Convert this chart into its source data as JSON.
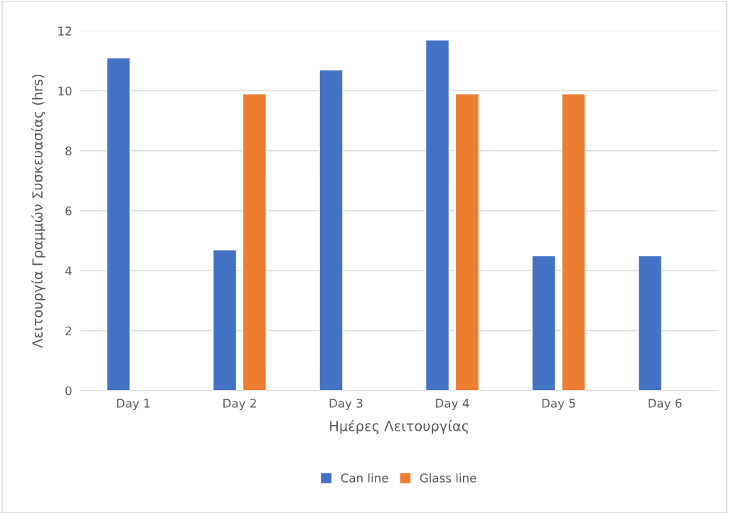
{
  "chart_data": {
    "type": "bar",
    "categories": [
      "Day 1",
      "Day 2",
      "Day 3",
      "Day 4",
      "Day 5",
      "Day 6"
    ],
    "series": [
      {
        "name": "Can line",
        "color": "#4472c4",
        "values": [
          11.1,
          4.7,
          10.7,
          11.7,
          4.5,
          4.5
        ]
      },
      {
        "name": "Glass line",
        "color": "#ed7d31",
        "values": [
          null,
          9.9,
          null,
          9.9,
          9.9,
          null
        ]
      }
    ],
    "xlabel": "Ημέρες Λειτουργίας",
    "ylabel": "Λειτουργία Γραμμών Συσκευασίας (hrs)",
    "ylim": [
      0,
      12
    ],
    "yticks": [
      0,
      2,
      4,
      6,
      8,
      10,
      12
    ],
    "grid": "y",
    "legend": "bottom"
  }
}
